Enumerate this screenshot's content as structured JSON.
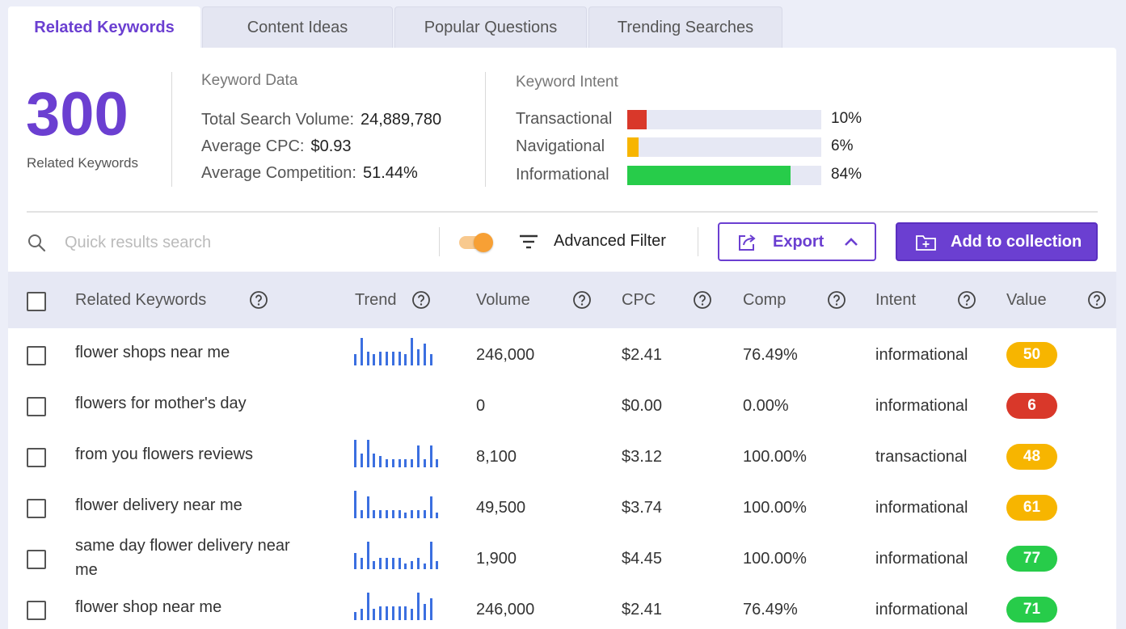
{
  "tabs": [
    {
      "label": "Related Keywords",
      "active": true
    },
    {
      "label": "Content Ideas",
      "active": false
    },
    {
      "label": "Popular Questions",
      "active": false
    },
    {
      "label": "Trending Searches",
      "active": false
    }
  ],
  "summary": {
    "count": "300",
    "count_label": "Related Keywords"
  },
  "keyword_data": {
    "title": "Keyword Data",
    "rows": [
      {
        "label": "Total Search Volume:",
        "value": "24,889,780"
      },
      {
        "label": "Average CPC:",
        "value": "$0.93"
      },
      {
        "label": "Average Competition:",
        "value": "51.44%"
      }
    ]
  },
  "keyword_intent": {
    "title": "Keyword Intent",
    "rows": [
      {
        "label": "Transactional",
        "percent": 10,
        "percent_label": "10%",
        "color": "#d9382a"
      },
      {
        "label": "Navigational",
        "percent": 6,
        "percent_label": "6%",
        "color": "#f7b500"
      },
      {
        "label": "Informational",
        "percent": 84,
        "percent_label": "84%",
        "color": "#27cc4a"
      }
    ]
  },
  "toolbar": {
    "search_placeholder": "Quick results search",
    "advanced_filter_label": "Advanced Filter",
    "export_label": "Export",
    "add_collection_label": "Add to collection",
    "toggle_on": true
  },
  "table": {
    "headers": {
      "keyword": "Related Keywords",
      "trend": "Trend",
      "volume": "Volume",
      "cpc": "CPC",
      "comp": "Comp",
      "intent": "Intent",
      "value": "Value"
    },
    "rows": [
      {
        "keyword": "flower shops near me",
        "trend": [
          4,
          10,
          5,
          4,
          5,
          5,
          5,
          5,
          4,
          10,
          6,
          8,
          4
        ],
        "volume": "246,000",
        "cpc": "$2.41",
        "comp": "76.49%",
        "intent": "informational",
        "value": "50",
        "value_color": "#f7b500"
      },
      {
        "keyword": "flowers for mother's day",
        "trend": [],
        "volume": "0",
        "cpc": "$0.00",
        "comp": "0.00%",
        "intent": "informational",
        "value": "6",
        "value_color": "#d9382a"
      },
      {
        "keyword": "from you flowers reviews",
        "trend": [
          10,
          5,
          10,
          5,
          4,
          3,
          3,
          3,
          3,
          3,
          8,
          3,
          8,
          3
        ],
        "volume": "8,100",
        "cpc": "$3.12",
        "comp": "100.00%",
        "intent": "transactional",
        "value": "48",
        "value_color": "#f7b500"
      },
      {
        "keyword": "flower delivery near me",
        "trend": [
          10,
          3,
          8,
          3,
          3,
          3,
          3,
          3,
          2,
          3,
          3,
          3,
          8,
          2
        ],
        "volume": "49,500",
        "cpc": "$3.74",
        "comp": "100.00%",
        "intent": "informational",
        "value": "61",
        "value_color": "#f7b500"
      },
      {
        "keyword": "same day flower delivery near me",
        "trend": [
          6,
          4,
          10,
          3,
          4,
          4,
          4,
          4,
          2,
          3,
          4,
          2,
          10,
          3
        ],
        "volume": "1,900",
        "cpc": "$4.45",
        "comp": "100.00%",
        "intent": "informational",
        "value": "77",
        "value_color": "#27cc4a"
      },
      {
        "keyword": "flower shop near me",
        "trend": [
          3,
          4,
          10,
          4,
          5,
          5,
          5,
          5,
          5,
          4,
          10,
          6,
          8
        ],
        "volume": "246,000",
        "cpc": "$2.41",
        "comp": "76.49%",
        "intent": "informational",
        "value": "71",
        "value_color": "#27cc4a"
      }
    ]
  }
}
